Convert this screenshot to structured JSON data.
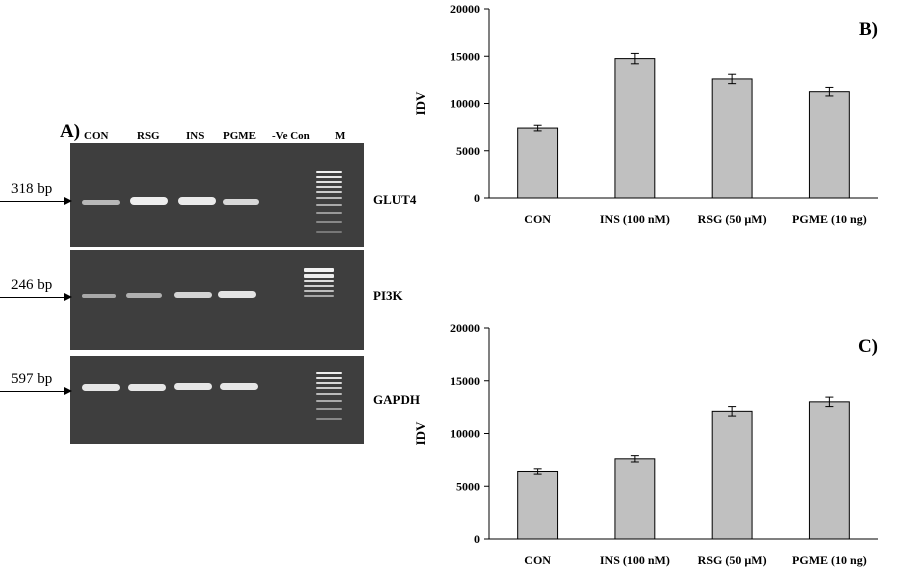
{
  "panel_a": {
    "letter": "A)",
    "lanes": [
      "CON",
      "RSG",
      "INS",
      "PGME",
      "-Ve Con",
      "M"
    ],
    "rows": [
      {
        "bp": "318 bp",
        "gene": "GLUT4"
      },
      {
        "bp": "246 bp",
        "gene": "PI3K"
      },
      {
        "bp": "597 bp",
        "gene": "GAPDH"
      }
    ]
  },
  "chart_data": [
    {
      "type": "bar",
      "panel": "B)",
      "categories": [
        "CON",
        "INS (100 nM)",
        "RSG (50 µM)",
        "PGME (10 ng)"
      ],
      "values": [
        7400,
        14750,
        12600,
        11250
      ],
      "errors": [
        300,
        550,
        500,
        450
      ],
      "ylabel": "IDV",
      "xlabel": "",
      "ylim": [
        0,
        20000
      ],
      "yticks": [
        "0",
        "5000",
        "10000",
        "15000",
        "20000"
      ],
      "grid": false,
      "bar_color": "#c0c0c0"
    },
    {
      "type": "bar",
      "panel": "C)",
      "categories": [
        "CON",
        "INS (100 nM)",
        "RSG (50 µM)",
        "PGME (10 ng)"
      ],
      "values": [
        6400,
        7600,
        12100,
        13000
      ],
      "errors": [
        250,
        300,
        450,
        450
      ],
      "ylabel": "IDV",
      "xlabel": "",
      "ylim": [
        0,
        20000
      ],
      "yticks": [
        "0",
        "5000",
        "10000",
        "15000",
        "20000"
      ],
      "grid": false,
      "bar_color": "#c0c0c0"
    }
  ]
}
